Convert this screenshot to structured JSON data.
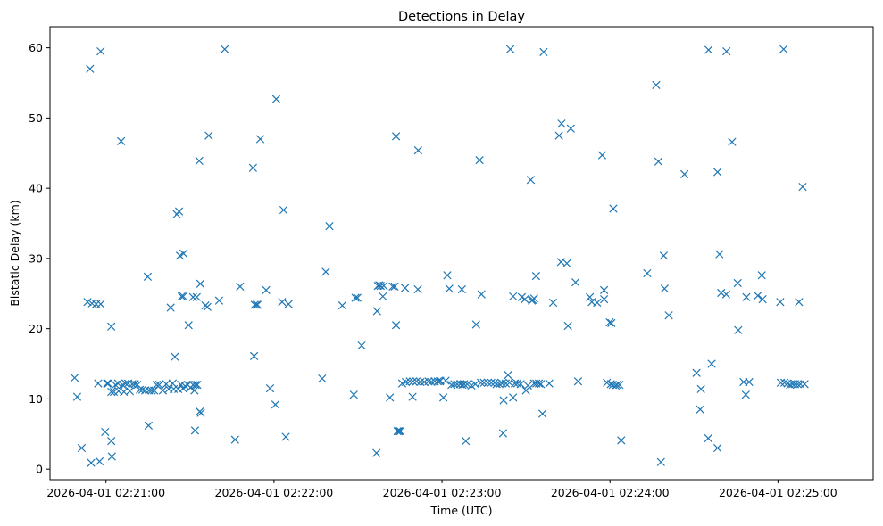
{
  "chart_data": {
    "type": "scatter",
    "title": "Detections in Delay",
    "xlabel": "Time (UTC)",
    "ylabel": "Bistatic Delay (km)",
    "ylim": [
      -1.5,
      63
    ],
    "xlim_seconds": [
      -20,
      274
    ],
    "x_ticks": [
      {
        "label": "2026-04-01 02:21:00"
      },
      {
        "label": "2026-04-01 02:22:00"
      },
      {
        "label": "2026-04-01 02:23:00"
      },
      {
        "label": "2026-04-01 02:24:00"
      },
      {
        "label": "2026-04-01 02:25:00"
      }
    ],
    "y_ticks": [
      0,
      10,
      20,
      30,
      40,
      50,
      60
    ],
    "marker": "x",
    "color": "#1f77b4",
    "grid": false,
    "legend": "none",
    "series": [
      {
        "points": [
          [
            -11.2,
            13.0
          ],
          [
            -10.3,
            10.3
          ],
          [
            -8.7,
            3.0
          ],
          [
            -6.6,
            23.8
          ],
          [
            -5.7,
            57.0
          ],
          [
            -5.0,
            23.6
          ],
          [
            -5.3,
            0.9
          ],
          [
            -3.5,
            23.5
          ],
          [
            -2.8,
            12.2
          ],
          [
            -1.9,
            59.5
          ],
          [
            -1.9,
            23.5
          ],
          [
            -2.3,
            1.1
          ],
          [
            -0.3,
            5.3
          ],
          [
            0.4,
            12.2
          ],
          [
            0.8,
            12.2
          ],
          [
            1.9,
            20.3
          ],
          [
            1.9,
            4.0
          ],
          [
            2.1,
            1.8
          ],
          [
            1.9,
            11.0
          ],
          [
            2.8,
            11.0
          ],
          [
            3.4,
            12.0
          ],
          [
            4.3,
            12.2
          ],
          [
            4.5,
            11.1
          ],
          [
            5.4,
            46.7
          ],
          [
            5.9,
            12.0
          ],
          [
            6.4,
            11.0
          ],
          [
            7.0,
            12.2
          ],
          [
            7.9,
            12.2
          ],
          [
            8.5,
            11.1
          ],
          [
            9.4,
            12.1
          ],
          [
            10.3,
            12.1
          ],
          [
            11.2,
            12.0
          ],
          [
            12.1,
            11.3
          ],
          [
            13.0,
            11.3
          ],
          [
            14.0,
            11.2
          ],
          [
            14.9,
            27.4
          ],
          [
            15.2,
            6.2
          ],
          [
            15.4,
            11.2
          ],
          [
            16.3,
            11.2
          ],
          [
            17.2,
            11.2
          ],
          [
            18.1,
            12.0
          ],
          [
            19.0,
            12.0
          ],
          [
            20.3,
            11.2
          ],
          [
            21.5,
            12.1
          ],
          [
            22.4,
            11.4
          ],
          [
            23.1,
            23.0
          ],
          [
            23.8,
            12.2
          ],
          [
            24.2,
            11.4
          ],
          [
            24.6,
            16.0
          ],
          [
            25.3,
            36.3
          ],
          [
            25.8,
            11.4
          ],
          [
            26.1,
            36.7
          ],
          [
            26.4,
            30.4
          ],
          [
            26.8,
            12.0
          ],
          [
            27.0,
            24.6
          ],
          [
            27.5,
            11.5
          ],
          [
            27.7,
            30.7
          ],
          [
            27.6,
            24.6
          ],
          [
            28.3,
            11.8
          ],
          [
            29.2,
            12.0
          ],
          [
            29.5,
            20.5
          ],
          [
            30.2,
            11.6
          ],
          [
            31.1,
            12.0
          ],
          [
            31.1,
            24.5
          ],
          [
            31.6,
            11.2
          ],
          [
            31.8,
            5.5
          ],
          [
            32.0,
            12.0
          ],
          [
            32.4,
            24.5
          ],
          [
            32.6,
            12.0
          ],
          [
            33.5,
            8.2
          ],
          [
            33.3,
            43.9
          ],
          [
            33.7,
            26.4
          ],
          [
            33.9,
            8.0
          ],
          [
            35.5,
            23.3
          ],
          [
            36.2,
            23.1
          ],
          [
            36.7,
            47.5
          ],
          [
            40.4,
            24.0
          ],
          [
            42.4,
            59.8
          ],
          [
            46.1,
            4.2
          ],
          [
            47.9,
            26.0
          ],
          [
            52.5,
            42.9
          ],
          [
            52.9,
            16.1
          ],
          [
            53.1,
            23.4
          ],
          [
            53.8,
            23.4
          ],
          [
            54.1,
            23.4
          ],
          [
            55.1,
            47.0
          ],
          [
            57.2,
            25.5
          ],
          [
            58.6,
            11.5
          ],
          [
            60.5,
            9.2
          ],
          [
            60.8,
            52.7
          ],
          [
            63.4,
            36.9
          ],
          [
            62.9,
            23.8
          ],
          [
            64.2,
            4.6
          ],
          [
            65.2,
            23.5
          ],
          [
            77.2,
            12.9
          ],
          [
            78.5,
            28.1
          ],
          [
            79.8,
            34.6
          ],
          [
            84.4,
            23.3
          ],
          [
            88.5,
            10.6
          ],
          [
            89.1,
            24.4
          ],
          [
            89.8,
            24.4
          ],
          [
            91.3,
            17.6
          ],
          [
            96.6,
            2.3
          ],
          [
            96.8,
            22.5
          ],
          [
            97.1,
            26.1
          ],
          [
            97.6,
            26.2
          ],
          [
            98.1,
            26.1
          ],
          [
            98.9,
            24.6
          ],
          [
            99.2,
            26.1
          ],
          [
            101.4,
            10.2
          ],
          [
            102.4,
            26.0
          ],
          [
            103.1,
            26.0
          ],
          [
            103.6,
            20.5
          ],
          [
            103.6,
            47.4
          ],
          [
            104.1,
            5.4
          ],
          [
            104.6,
            5.4
          ],
          [
            105.1,
            5.4
          ],
          [
            105.8,
            12.2
          ],
          [
            106.8,
            25.8
          ],
          [
            107.1,
            12.4
          ],
          [
            108.5,
            12.5
          ],
          [
            109.5,
            10.3
          ],
          [
            109.7,
            12.5
          ],
          [
            110.9,
            12.5
          ],
          [
            111.5,
            45.4
          ],
          [
            111.4,
            25.6
          ],
          [
            112.3,
            12.4
          ],
          [
            113.7,
            12.4
          ],
          [
            115.2,
            12.5
          ],
          [
            116.2,
            12.4
          ],
          [
            117.4,
            12.5
          ],
          [
            118.5,
            12.5
          ],
          [
            119.2,
            12.5
          ],
          [
            119.4,
            12.6
          ],
          [
            120.5,
            10.2
          ],
          [
            121.3,
            12.6
          ],
          [
            121.9,
            27.6
          ],
          [
            122.6,
            25.7
          ],
          [
            123.4,
            12.0
          ],
          [
            124.4,
            12.1
          ],
          [
            125.4,
            12.1
          ],
          [
            126.5,
            12.1
          ],
          [
            127.1,
            25.6
          ],
          [
            127.3,
            12.0
          ],
          [
            127.9,
            12.1
          ],
          [
            128.5,
            4.0
          ],
          [
            129.0,
            12.1
          ],
          [
            130.5,
            11.9
          ],
          [
            131.9,
            12.1
          ],
          [
            132.2,
            20.6
          ],
          [
            133.4,
            44.0
          ],
          [
            133.9,
            12.3
          ],
          [
            134.1,
            24.9
          ],
          [
            135.0,
            12.3
          ],
          [
            136.4,
            12.3
          ],
          [
            137.6,
            12.3
          ],
          [
            138.8,
            12.3
          ],
          [
            139.5,
            12.1
          ],
          [
            140.5,
            12.1
          ],
          [
            141.5,
            12.2
          ],
          [
            141.8,
            5.1
          ],
          [
            142.0,
            9.8
          ],
          [
            142.8,
            12.2
          ],
          [
            143.6,
            13.4
          ],
          [
            144.1,
            12.3
          ],
          [
            144.4,
            59.8
          ],
          [
            145.4,
            10.2
          ],
          [
            145.4,
            24.6
          ],
          [
            146.0,
            12.2
          ],
          [
            146.9,
            12.2
          ],
          [
            148.1,
            12.1
          ],
          [
            148.5,
            24.5
          ],
          [
            149.6,
            24.2
          ],
          [
            150.0,
            11.2
          ],
          [
            150.7,
            11.9
          ],
          [
            151.7,
            41.2
          ],
          [
            152.1,
            24.0
          ],
          [
            152.4,
            24.1
          ],
          [
            152.9,
            12.2
          ],
          [
            152.9,
            24.3
          ],
          [
            153.6,
            27.5
          ],
          [
            153.7,
            12.2
          ],
          [
            154.6,
            12.2
          ],
          [
            155.3,
            12.1
          ],
          [
            155.9,
            7.9
          ],
          [
            156.3,
            59.4
          ],
          [
            158.3,
            12.2
          ],
          [
            159.7,
            23.7
          ],
          [
            161.8,
            47.5
          ],
          [
            162.7,
            49.2
          ],
          [
            162.5,
            29.5
          ],
          [
            164.6,
            29.3
          ],
          [
            165.0,
            20.4
          ],
          [
            166.0,
            48.5
          ],
          [
            167.7,
            26.6
          ],
          [
            168.6,
            12.5
          ],
          [
            172.8,
            24.5
          ],
          [
            173.5,
            23.8
          ],
          [
            175.4,
            23.7
          ],
          [
            177.2,
            44.7
          ],
          [
            177.9,
            25.5
          ],
          [
            177.9,
            24.2
          ],
          [
            178.9,
            12.3
          ],
          [
            179.9,
            20.9
          ],
          [
            180.3,
            12.1
          ],
          [
            180.5,
            20.8
          ],
          [
            181.0,
            12.0
          ],
          [
            181.2,
            37.1
          ],
          [
            182.0,
            11.9
          ],
          [
            182.5,
            12.0
          ],
          [
            183.4,
            12.0
          ],
          [
            184.0,
            4.1
          ],
          [
            193.3,
            27.9
          ],
          [
            196.5,
            54.7
          ],
          [
            197.3,
            43.8
          ],
          [
            198.2,
            1.0
          ],
          [
            199.2,
            30.4
          ],
          [
            199.5,
            25.7
          ],
          [
            201.0,
            21.9
          ],
          [
            206.6,
            42.0
          ],
          [
            210.9,
            13.7
          ],
          [
            212.2,
            8.5
          ],
          [
            212.5,
            11.4
          ],
          [
            215.1,
            4.4
          ],
          [
            215.2,
            59.7
          ],
          [
            216.3,
            15.0
          ],
          [
            218.4,
            42.3
          ],
          [
            218.4,
            3.0
          ],
          [
            219.1,
            30.6
          ],
          [
            219.7,
            25.1
          ],
          [
            221.5,
            24.9
          ],
          [
            221.6,
            59.5
          ],
          [
            223.6,
            46.6
          ],
          [
            225.6,
            26.5
          ],
          [
            225.8,
            19.8
          ],
          [
            227.7,
            12.4
          ],
          [
            228.5,
            10.6
          ],
          [
            228.7,
            24.5
          ],
          [
            229.7,
            12.4
          ],
          [
            232.8,
            24.7
          ],
          [
            234.2,
            27.6
          ],
          [
            234.5,
            24.2
          ],
          [
            240.8,
            23.8
          ],
          [
            241.0,
            12.3
          ],
          [
            242.0,
            59.8
          ],
          [
            242.3,
            12.3
          ],
          [
            243.4,
            12.2
          ],
          [
            244.3,
            12.0
          ],
          [
            245.2,
            12.1
          ],
          [
            246.1,
            12.1
          ],
          [
            247.0,
            12.1
          ],
          [
            247.5,
            23.8
          ],
          [
            248.0,
            12.1
          ],
          [
            248.8,
            40.2
          ],
          [
            249.5,
            12.1
          ]
        ]
      }
    ]
  }
}
